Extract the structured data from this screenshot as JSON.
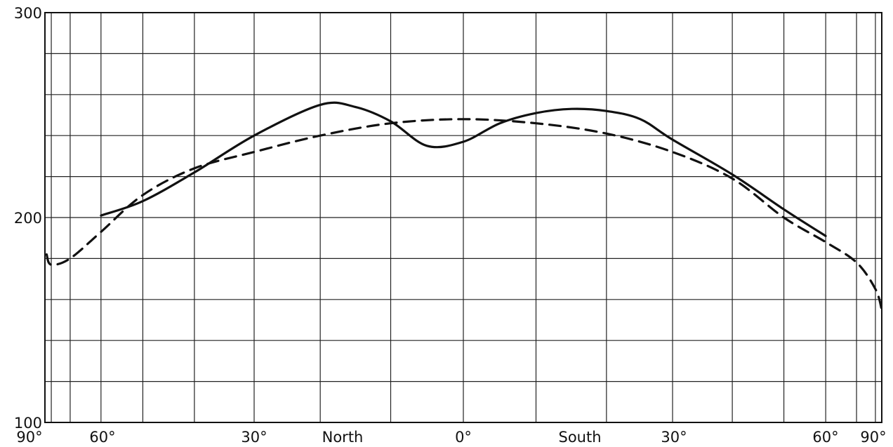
{
  "chart_data": {
    "type": "line",
    "title": "",
    "xlabel": "",
    "ylabel": "",
    "ylim": [
      100,
      300
    ],
    "y_ticks": [
      "100",
      "200",
      "300"
    ],
    "x_tick_labels": [
      "90°",
      "60°",
      "30°",
      "North",
      "0°",
      "South",
      "30°",
      "60°",
      "90°"
    ],
    "x_axis": "latitude as sin(φ), from North pole (-1) to South pole (+1)",
    "grid": true,
    "colors": {
      "line": "#111111",
      "grid": "#222222"
    },
    "series": [
      {
        "style": "solid",
        "x": [
          -0.866,
          -0.766,
          -0.643,
          -0.5,
          -0.342,
          -0.259,
          -0.174,
          -0.087,
          0.0,
          0.087,
          0.174,
          0.259,
          0.342,
          0.423,
          0.5,
          0.643,
          0.766,
          0.866
        ],
        "y": [
          201,
          208,
          222,
          240,
          255,
          254,
          247,
          235,
          237,
          246,
          251,
          253,
          252,
          248,
          238,
          221,
          204,
          191
        ]
      },
      {
        "style": "dashed",
        "x": [
          -0.996,
          -0.985,
          -0.94,
          -0.866,
          -0.766,
          -0.643,
          -0.5,
          -0.342,
          -0.174,
          0.0,
          0.174,
          0.342,
          0.5,
          0.643,
          0.766,
          0.866,
          0.94,
          0.985,
          1.0
        ],
        "y": [
          182,
          177,
          180,
          193,
          211,
          224,
          232,
          240,
          246,
          248,
          246,
          241,
          232,
          219,
          200,
          188,
          178,
          165,
          155
        ]
      }
    ]
  }
}
